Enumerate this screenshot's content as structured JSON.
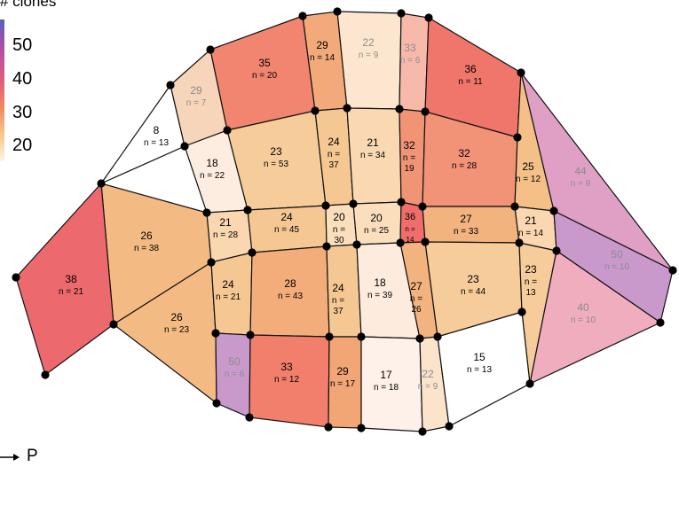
{
  "legend": {
    "title": "# clones",
    "ticks": [
      "50",
      "40",
      "30",
      "20"
    ]
  },
  "axis_arrow_label": "P",
  "regions": [
    {
      "id": "r01",
      "value": "8",
      "n": "n = 13",
      "fill": "#ffffff",
      "muted": false
    },
    {
      "id": "r02",
      "value": "29",
      "n": "n = 7",
      "fill": "#f6d5bb",
      "muted": true
    },
    {
      "id": "r03",
      "value": "35",
      "n": "n = 20",
      "fill": "#f18570",
      "muted": false
    },
    {
      "id": "r04",
      "value": "29",
      "n": "n = 14",
      "fill": "#f2aa7a",
      "muted": false
    },
    {
      "id": "r05",
      "value": "22",
      "n": "n = 9",
      "fill": "#fde6cf",
      "muted": true
    },
    {
      "id": "r06",
      "value": "33",
      "n": "n = 6",
      "fill": "#f7b9aa",
      "muted": true
    },
    {
      "id": "r07",
      "value": "36",
      "n": "n = 11",
      "fill": "#f0766b",
      "muted": false
    },
    {
      "id": "r08",
      "value": "44",
      "n": "n = 9",
      "fill": "#e0a0c6",
      "muted": true
    },
    {
      "id": "r09",
      "value": "18",
      "n": "n = 22",
      "fill": "#fdece0",
      "muted": false
    },
    {
      "id": "r10",
      "value": "23",
      "n": "n = 53",
      "fill": "#f6cc9a",
      "muted": false
    },
    {
      "id": "r11",
      "value": "24",
      "n": "n = 37",
      "fill": "#f5c792",
      "muted": false
    },
    {
      "id": "r12",
      "value": "21",
      "n": "n = 34",
      "fill": "#fad9b2",
      "muted": false
    },
    {
      "id": "r13",
      "value": "32",
      "n": "n = 19",
      "fill": "#f19476",
      "muted": false
    },
    {
      "id": "r14",
      "value": "32",
      "n": "n = 28",
      "fill": "#f29277",
      "muted": false
    },
    {
      "id": "r15",
      "value": "25",
      "n": "n = 12",
      "fill": "#f4c087",
      "muted": false
    },
    {
      "id": "r16",
      "value": "26",
      "n": "n = 38",
      "fill": "#f3bb83",
      "muted": false
    },
    {
      "id": "r17",
      "value": "38",
      "n": "n = 21",
      "fill": "#ec6a6d",
      "muted": false
    },
    {
      "id": "r18",
      "value": "21",
      "n": "n = 28",
      "fill": "#fad7b0",
      "muted": false
    },
    {
      "id": "r19",
      "value": "24",
      "n": "n = 45",
      "fill": "#f5c792",
      "muted": false
    },
    {
      "id": "r20",
      "value": "20",
      "n": "n = 30",
      "fill": "#fbdfbd",
      "muted": false
    },
    {
      "id": "r21",
      "value": "20",
      "n": "n = 25",
      "fill": "#fbdfbd",
      "muted": false
    },
    {
      "id": "r22",
      "value": "36",
      "n": "n = 14",
      "fill": "#ef6d6a",
      "muted": false
    },
    {
      "id": "r23",
      "value": "27",
      "n": "n = 33",
      "fill": "#f2b37e",
      "muted": false
    },
    {
      "id": "r24",
      "value": "21",
      "n": "n = 14",
      "fill": "#fad7b0",
      "muted": false
    },
    {
      "id": "r25",
      "value": "50",
      "n": "n = 10",
      "fill": "#c999cc",
      "muted": true
    },
    {
      "id": "r26",
      "value": "26",
      "n": "n = 23",
      "fill": "#f3bb83",
      "muted": false
    },
    {
      "id": "r27",
      "value": "24",
      "n": "n = 21",
      "fill": "#f5c792",
      "muted": false
    },
    {
      "id": "r28",
      "value": "28",
      "n": "n = 43",
      "fill": "#f2ad7a",
      "muted": false
    },
    {
      "id": "r29",
      "value": "24",
      "n": "n = 37",
      "fill": "#f5c792",
      "muted": false
    },
    {
      "id": "r30",
      "value": "18",
      "n": "n = 39",
      "fill": "#fdebdd",
      "muted": false
    },
    {
      "id": "r31",
      "value": "27",
      "n": "n = 26",
      "fill": "#f2b37e",
      "muted": false
    },
    {
      "id": "r32",
      "value": "23",
      "n": "n = 44",
      "fill": "#f6cc9a",
      "muted": false
    },
    {
      "id": "r33",
      "value": "23",
      "n": "n = 13",
      "fill": "#f6cc9a",
      "muted": false
    },
    {
      "id": "r34",
      "value": "40",
      "n": "n = 10",
      "fill": "#f0adbe",
      "muted": true
    },
    {
      "id": "r35",
      "value": "50",
      "n": "n = 6",
      "fill": "#c999cc",
      "muted": true
    },
    {
      "id": "r36",
      "value": "33",
      "n": "n = 12",
      "fill": "#f17f6c",
      "muted": false
    },
    {
      "id": "r37",
      "value": "29",
      "n": "n = 17",
      "fill": "#f2a575",
      "muted": false
    },
    {
      "id": "r38",
      "value": "17",
      "n": "n = 18",
      "fill": "#fdf1e9",
      "muted": false
    },
    {
      "id": "r39",
      "value": "22",
      "n": "n = 9",
      "fill": "#fce3cc",
      "muted": true
    },
    {
      "id": "r40",
      "value": "15",
      "n": "n = 13",
      "fill": "#ffffff",
      "muted": false
    }
  ]
}
